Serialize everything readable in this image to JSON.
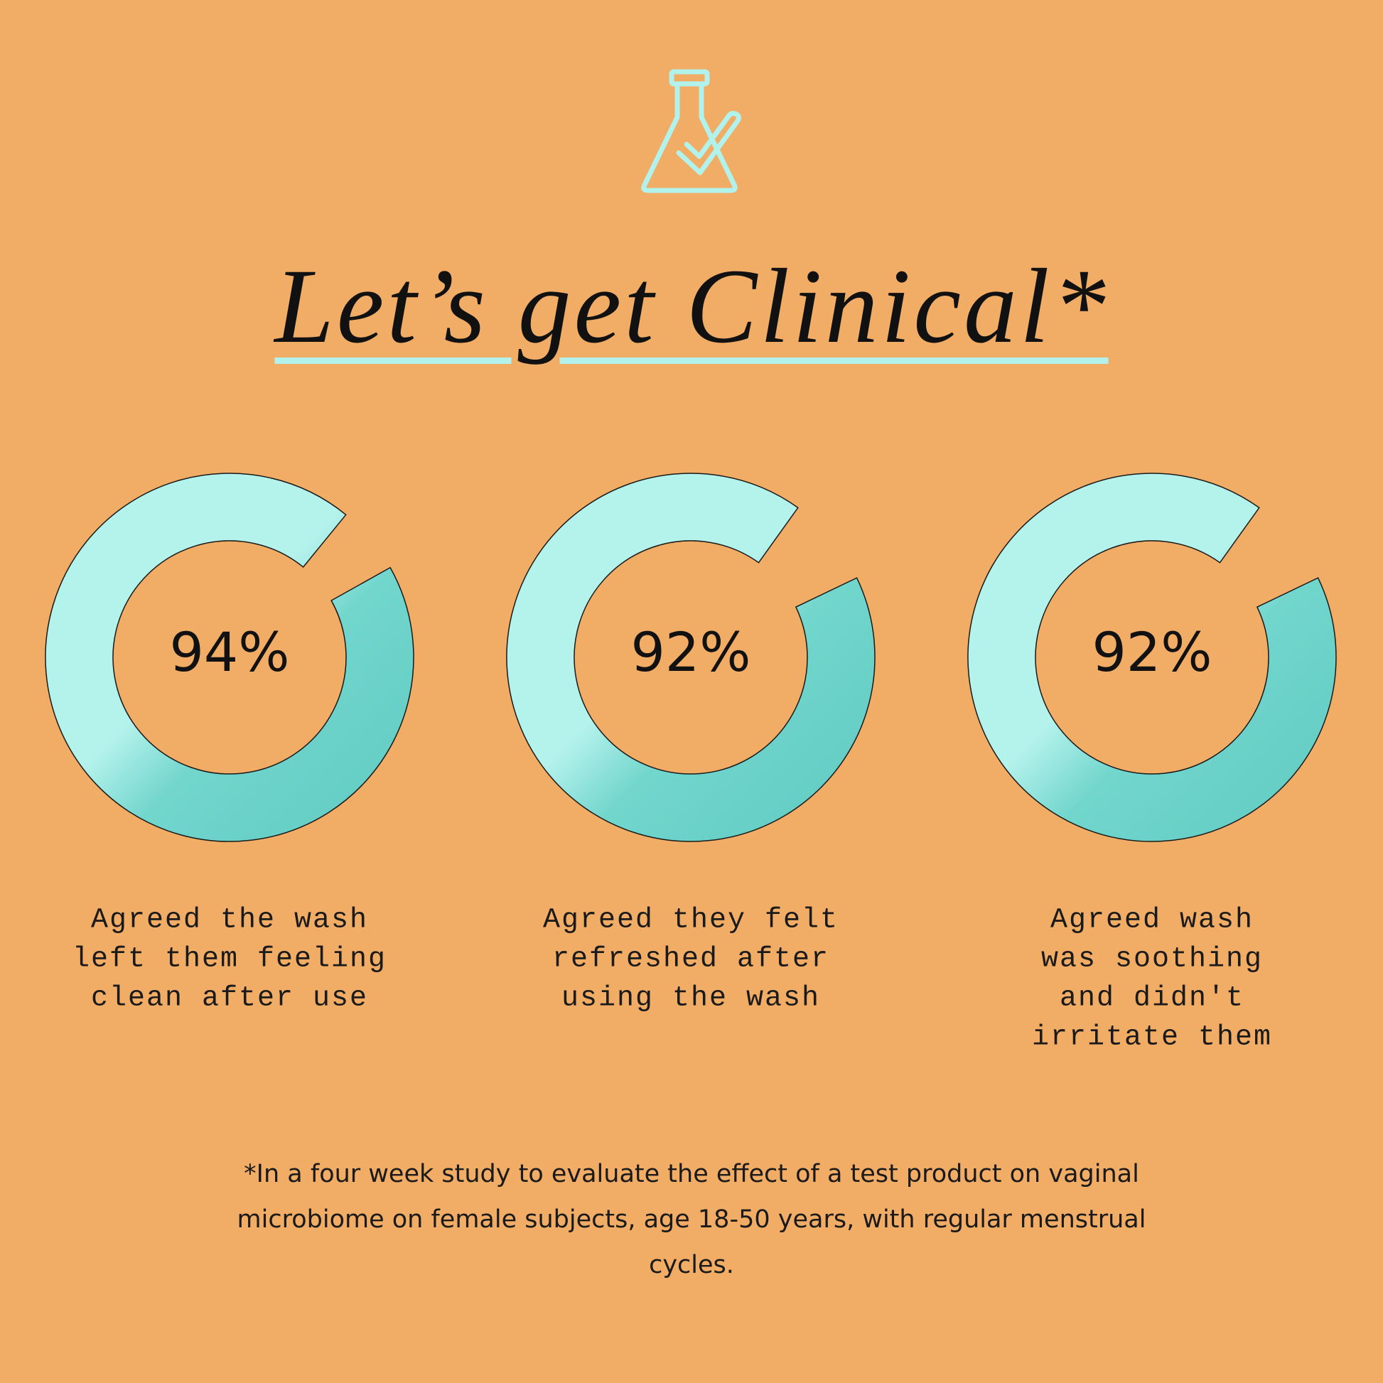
{
  "title": "Let’s get Clinical*",
  "footnote": "*In a four week study to evaluate the effect of a test product on vaginal microbiome on female subjects, age 18-50 years, with regular menstrual cycles.",
  "chart_data": [
    {
      "type": "donut",
      "values": [
        94
      ],
      "value_labels": [
        "94%"
      ],
      "color": "#6fd3cb",
      "caption": [
        "Agreed the wash",
        "left them feeling",
        "clean after use"
      ]
    },
    {
      "type": "donut",
      "values": [
        92
      ],
      "value_labels": [
        "92%"
      ],
      "color": "#6fd3cb",
      "caption": [
        "Agreed they felt",
        "refreshed after",
        "using the wash"
      ]
    },
    {
      "type": "donut",
      "values": [
        92
      ],
      "value_labels": [
        "92%"
      ],
      "color": "#6fd3cb",
      "caption": [
        "Agreed wash",
        "was soothing",
        "and didn't",
        "irritate them"
      ]
    }
  ]
}
